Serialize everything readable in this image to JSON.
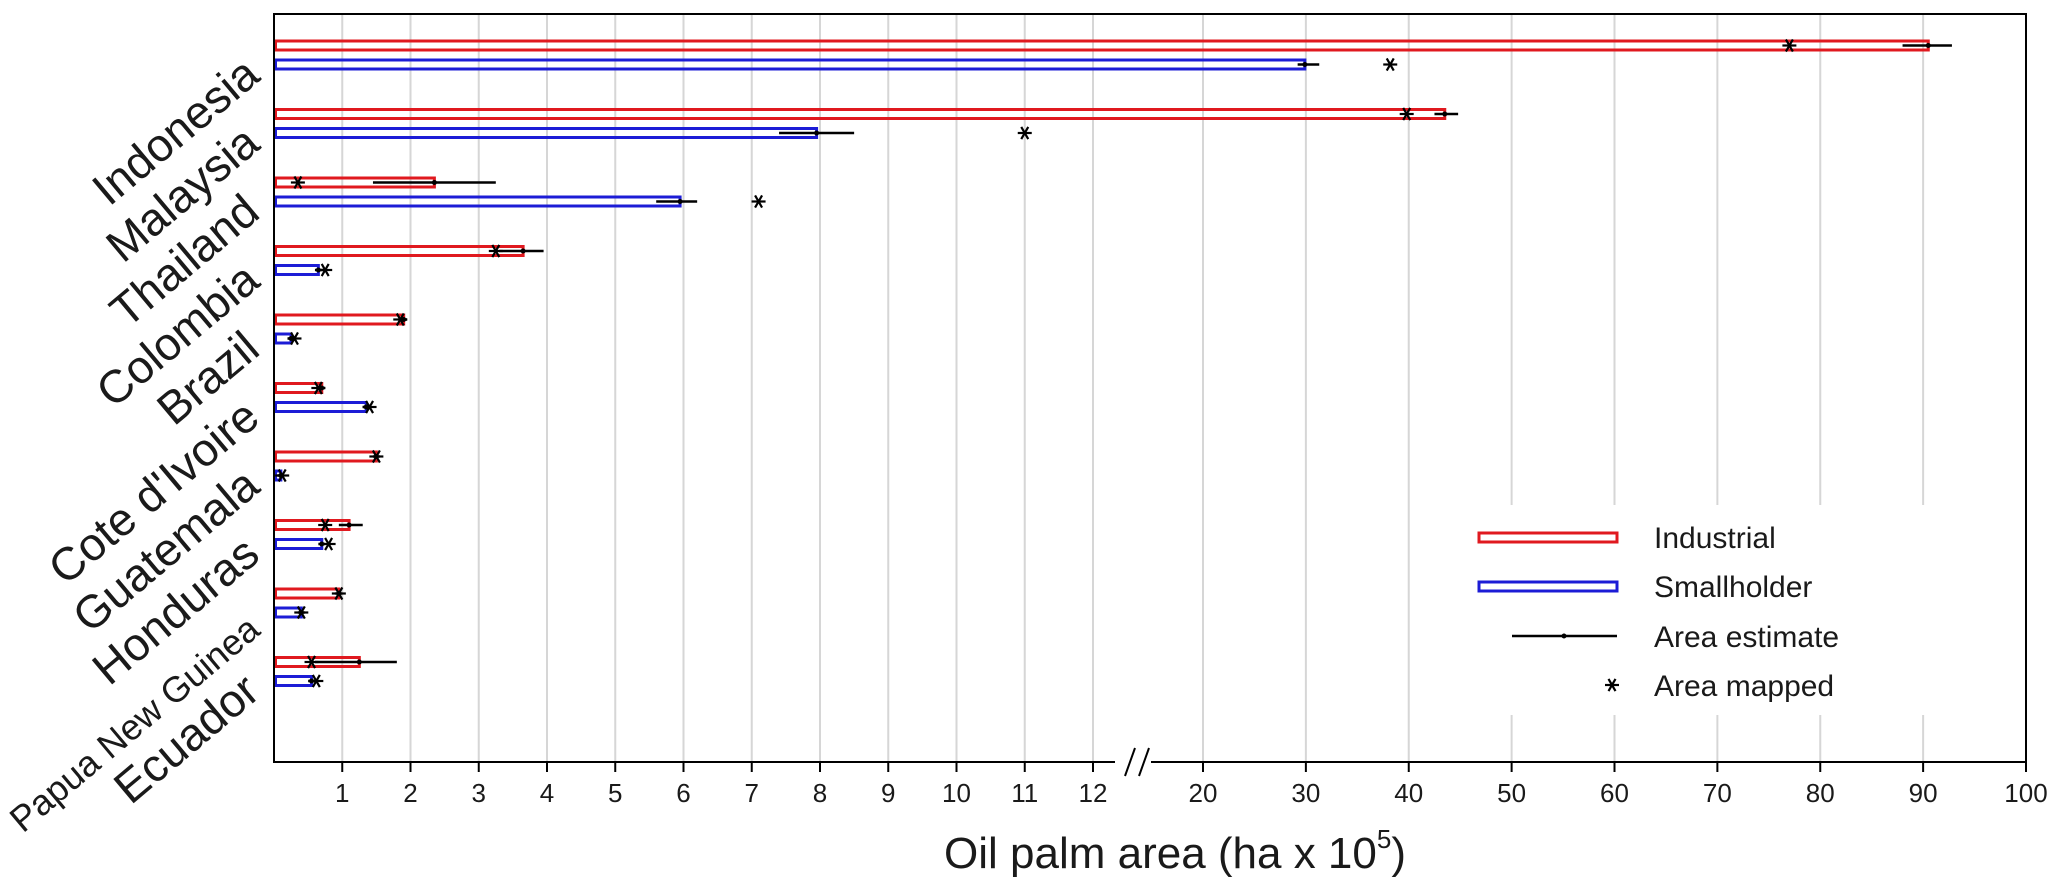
{
  "chart_data": {
    "type": "bar",
    "orientation": "horizontal",
    "xlabel": "Oil palm area (ha x 10",
    "xlabel_superscript": "5",
    "xlabel_suffix": ")",
    "axis_break": {
      "from": 12,
      "to": 20
    },
    "xticks_left": [
      1,
      2,
      3,
      4,
      5,
      6,
      7,
      8,
      9,
      10,
      11,
      12
    ],
    "xticks_right": [
      20,
      30,
      40,
      50,
      60,
      70,
      80,
      90,
      100
    ],
    "grid": "vertical",
    "legend_position": "bottom-right",
    "legend": [
      {
        "label": "Industrial",
        "kind": "bar",
        "color": "#e0191f"
      },
      {
        "label": "Smallholder",
        "kind": "bar",
        "color": "#1c1cd6"
      },
      {
        "label": "Area estimate",
        "kind": "errorbar",
        "color": "#000000"
      },
      {
        "label": "Area mapped",
        "kind": "star",
        "color": "#000000"
      }
    ],
    "categories": [
      "Indonesia",
      "Malaysia",
      "Thailand",
      "Colombia",
      "Brazil",
      "Cote d'Ivoire",
      "Guatemala",
      "Honduras",
      "Papua New Guinea",
      "Ecuador"
    ],
    "series": [
      {
        "name": "Industrial",
        "color": "#e0191f",
        "values": [
          90.5,
          43.5,
          2.35,
          3.65,
          1.9,
          0.7,
          1.5,
          1.1,
          0.95,
          1.25
        ],
        "err_low": [
          88,
          42.5,
          1.45,
          3.3,
          1.85,
          0.65,
          1.45,
          0.95,
          0.9,
          0.6
        ],
        "err_high": [
          92.8,
          44.8,
          3.25,
          3.95,
          1.95,
          0.75,
          1.55,
          1.3,
          1.0,
          1.8
        ],
        "mapped": [
          77,
          39.8,
          0.35,
          3.25,
          1.85,
          0.65,
          1.5,
          0.75,
          0.95,
          0.55
        ]
      },
      {
        "name": "Smallholder",
        "color": "#1c1cd6",
        "values": [
          29.9,
          7.95,
          5.95,
          0.65,
          0.25,
          1.35,
          0.1,
          0.7,
          0.4,
          0.55
        ],
        "err_low": [
          29.2,
          7.4,
          5.6,
          0.6,
          0.2,
          1.3,
          0.05,
          0.65,
          0.35,
          0.5
        ],
        "err_high": [
          31.3,
          8.5,
          6.2,
          0.75,
          0.3,
          1.4,
          0.12,
          0.75,
          0.45,
          0.6
        ],
        "mapped": [
          38.2,
          11.0,
          7.1,
          0.75,
          0.3,
          1.4,
          0.12,
          0.8,
          0.4,
          0.62
        ]
      }
    ]
  }
}
